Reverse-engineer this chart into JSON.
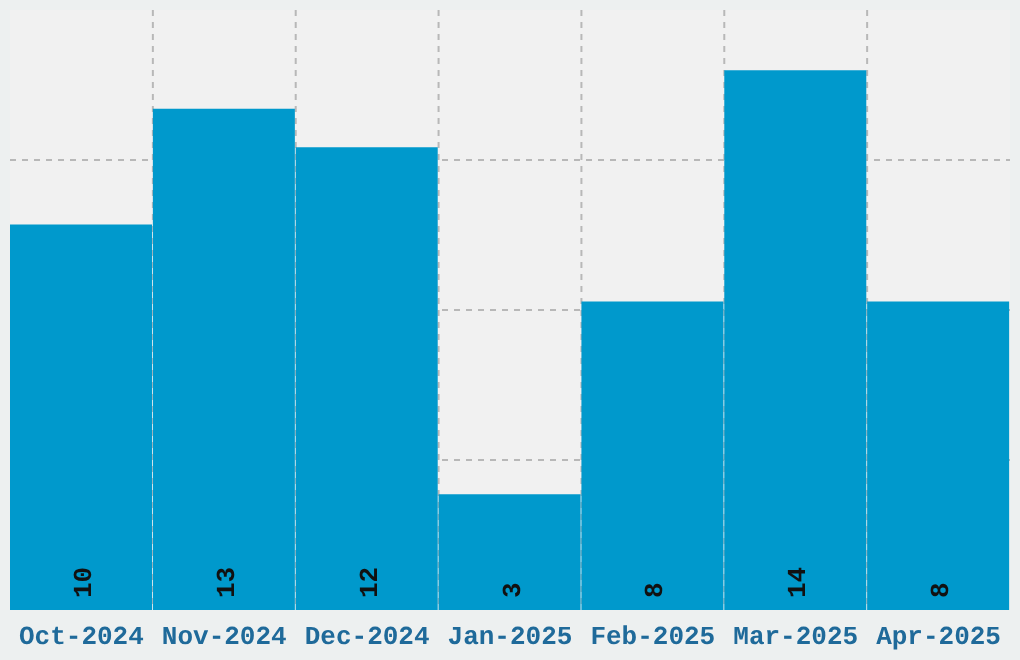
{
  "chart_data": {
    "type": "bar",
    "categories": [
      "Oct-2024",
      "Nov-2024",
      "Dec-2024",
      "Jan-2025",
      "Feb-2025",
      "Mar-2025",
      "Apr-2025"
    ],
    "values": [
      10,
      13,
      12,
      3,
      8,
      14,
      8
    ],
    "color": "#0099cc",
    "ylim": [
      0,
      15.56
    ],
    "tick_labels": "x",
    "grid": true,
    "data_labels": true
  }
}
